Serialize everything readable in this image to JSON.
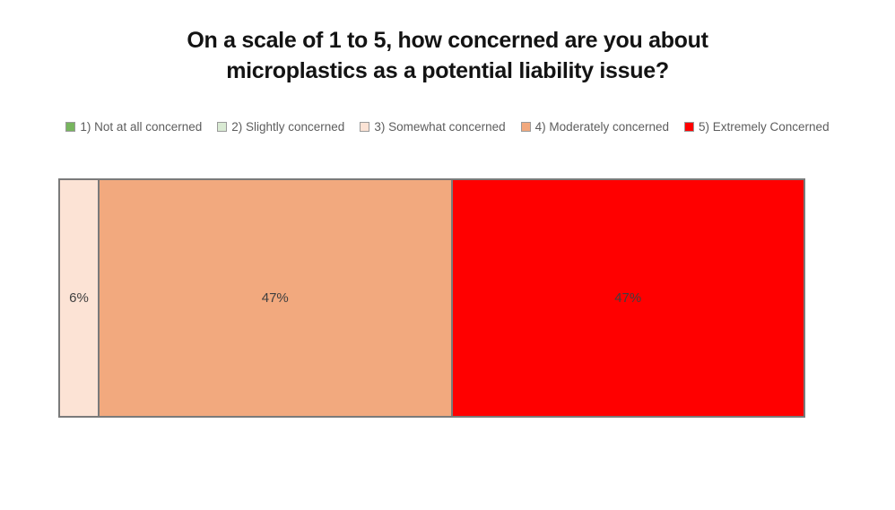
{
  "page": {
    "background": "#ffffff"
  },
  "chart_data": {
    "type": "bar",
    "orientation": "horizontal",
    "stacked": true,
    "percent_scale": true,
    "title": "On a scale of 1 to 5, how concerned are you about microplastics as a potential liability issue?",
    "title_lines": [
      "On a scale of 1 to 5, how concerned are you about",
      "microplastics as a potential liability issue?"
    ],
    "legend_position": "top",
    "grid": false,
    "axes_visible": false,
    "categories": [
      "1) Not at all concerned",
      "2) Slightly concerned",
      "3) Somewhat concerned",
      "4) Moderately concerned",
      "5) Extremely Concerned"
    ],
    "legend": [
      {
        "label": "1) Not at all concerned",
        "color": "#77b55e"
      },
      {
        "label": "2) Slightly concerned",
        "color": "#d9ead3"
      },
      {
        "label": "3) Somewhat concerned",
        "color": "#fce3d5"
      },
      {
        "label": "4) Moderately concerned",
        "color": "#f2a97e"
      },
      {
        "label": "5) Extremely Concerned",
        "color": "#ff0000"
      }
    ],
    "segments": [
      {
        "category": "3) Somewhat concerned",
        "value": 6,
        "label": "6%",
        "color": "#fce3d5",
        "width_pct": 5.3
      },
      {
        "category": "4) Moderately concerned",
        "value": 47,
        "label": "47%",
        "color": "#f2a97e",
        "width_pct": 47.35
      },
      {
        "category": "5) Extremely Concerned",
        "value": 47,
        "label": "47%",
        "color": "#ff0000",
        "width_pct": 47.35
      }
    ],
    "style": {
      "border_color": "#7a7a7a",
      "legend_text_color": "#5d5d5d",
      "segment_label_color": "#3f3f3f",
      "title_color": "#131313"
    }
  }
}
